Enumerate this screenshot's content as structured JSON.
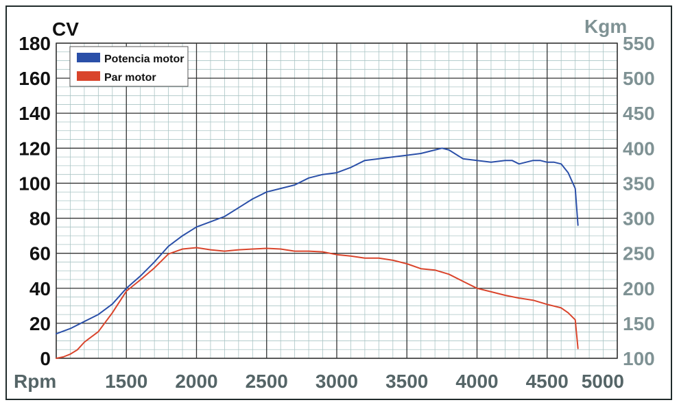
{
  "chart_data": {
    "type": "line",
    "title": "",
    "xlabel": "Rpm",
    "ylabel_left": "CV",
    "ylabel_right": "Kgm",
    "xlim": [
      1000,
      5000
    ],
    "ylim_left": [
      0,
      180
    ],
    "ylim_right": [
      100,
      550
    ],
    "x_ticks": [
      "1500",
      "2000",
      "2500",
      "3000",
      "3500",
      "4000",
      "4500",
      "5000"
    ],
    "y_ticks_left": [
      "0",
      "20",
      "40",
      "60",
      "80",
      "100",
      "120",
      "140",
      "160",
      "180"
    ],
    "y_ticks_right": [
      "100",
      "150",
      "200",
      "250",
      "300",
      "350",
      "400",
      "450",
      "500",
      "550"
    ],
    "grid": true,
    "legend_position": "top-left",
    "series": [
      {
        "name": "Potencia motor",
        "color": "#2a4fa8",
        "axis": "left",
        "x": [
          1000,
          1100,
          1200,
          1300,
          1400,
          1500,
          1600,
          1700,
          1800,
          1900,
          2000,
          2100,
          2200,
          2300,
          2400,
          2500,
          2600,
          2700,
          2800,
          2900,
          3000,
          3100,
          3200,
          3300,
          3400,
          3500,
          3600,
          3700,
          3750,
          3800,
          3900,
          4000,
          4100,
          4200,
          4250,
          4300,
          4400,
          4450,
          4500,
          4550,
          4600,
          4650,
          4700,
          4720
        ],
        "values": [
          14,
          17,
          21,
          25,
          31,
          40,
          47,
          55,
          64,
          70,
          75,
          78,
          81,
          86,
          91,
          95,
          97,
          99,
          103,
          105,
          106,
          109,
          113,
          114,
          115,
          116,
          117,
          119,
          120,
          119,
          114,
          113,
          112,
          113,
          113,
          111,
          113,
          113,
          112,
          112,
          111,
          106,
          97,
          76
        ]
      },
      {
        "name": "Par motor",
        "color": "#d9442b",
        "axis": "right",
        "x": [
          1000,
          1050,
          1100,
          1150,
          1200,
          1300,
          1400,
          1500,
          1600,
          1700,
          1800,
          1900,
          2000,
          2100,
          2200,
          2300,
          2400,
          2500,
          2600,
          2700,
          2800,
          2900,
          3000,
          3100,
          3200,
          3300,
          3400,
          3500,
          3600,
          3700,
          3800,
          3900,
          4000,
          4100,
          4200,
          4300,
          4400,
          4500,
          4600,
          4650,
          4700,
          4720
        ],
        "values": [
          100,
          102,
          106,
          112,
          123,
          138,
          165,
          196,
          212,
          229,
          249,
          256,
          258,
          255,
          253,
          255,
          256,
          257,
          256,
          253,
          253,
          252,
          248,
          246,
          243,
          243,
          240,
          235,
          228,
          226,
          220,
          210,
          200,
          195,
          190,
          186,
          183,
          177,
          172,
          165,
          155,
          114
        ]
      }
    ]
  }
}
